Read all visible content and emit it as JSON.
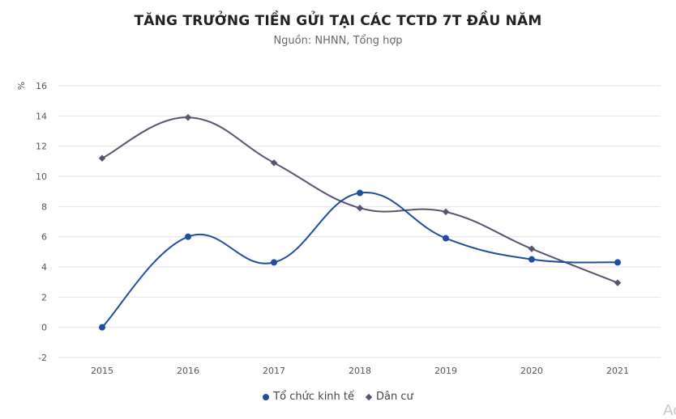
{
  "title": "TĂNG TRƯỞNG TIỀN GỬI TẠI CÁC TCTD 7T ĐẦU NĂM",
  "subtitle": "Nguồn: NHNN, Tổng hợp",
  "watermark": "Ac",
  "chart_data": {
    "type": "line",
    "title": "TĂNG TRƯỞNG TIỀN GỬI TẠI CÁC TCTD 7T ĐẦU NĂM",
    "subtitle": "Nguồn: NHNN, Tổng hợp",
    "xlabel": "",
    "ylabel": "%",
    "categories": [
      "2015",
      "2016",
      "2017",
      "2018",
      "2019",
      "2020",
      "2021"
    ],
    "ylim": [
      -2,
      16
    ],
    "yticks": [
      -2,
      0,
      2,
      4,
      6,
      8,
      10,
      12,
      14,
      16
    ],
    "grid": true,
    "smooth": true,
    "legend_position": "bottom",
    "series": [
      {
        "name": "Tổ chức kinh tế",
        "color": "#1f4e9c",
        "marker": "circle",
        "values": [
          0.0,
          6.0,
          4.3,
          8.9,
          5.9,
          4.5,
          4.3
        ]
      },
      {
        "name": "Dân cư",
        "color": "#5a5470",
        "marker": "diamond",
        "values": [
          11.2,
          13.9,
          10.9,
          7.9,
          7.65,
          5.2,
          2.95
        ]
      }
    ]
  },
  "legend": [
    {
      "label": "Tổ chức kinh tế",
      "color": "#1f4e9c",
      "marker": "circle"
    },
    {
      "label": "Dân cư",
      "color": "#5a5470",
      "marker": "diamond"
    }
  ]
}
